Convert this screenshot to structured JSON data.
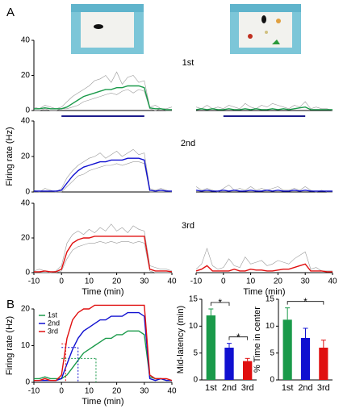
{
  "panel_labels": [
    "A",
    "B"
  ],
  "chart_data": [
    {
      "type": "line",
      "annotation": "1st",
      "xlim": [
        -10,
        40
      ],
      "ylim": [
        0,
        40
      ],
      "yticks": [
        0,
        20,
        40
      ],
      "stimulus": [
        0,
        30
      ],
      "stimulus_color": "#1c1c8c",
      "x": [
        -10,
        -8,
        -6,
        -4,
        -2,
        0,
        2,
        4,
        6,
        8,
        10,
        12,
        14,
        16,
        18,
        20,
        22,
        24,
        26,
        28,
        30,
        32,
        34,
        36,
        38,
        40
      ],
      "series": [
        {
          "color": "#999999",
          "values": [
            2,
            1,
            3,
            2,
            1,
            2,
            5,
            8,
            10,
            12,
            14,
            17,
            18,
            20,
            16,
            22,
            15,
            19,
            20,
            16,
            17,
            2,
            3,
            1,
            1,
            2
          ]
        },
        {
          "color": "#999999",
          "values": [
            0,
            0,
            1,
            0,
            0,
            1,
            1,
            2,
            3,
            5,
            6,
            7,
            8,
            9,
            10,
            9,
            11,
            12,
            10,
            12,
            11,
            1,
            0,
            1,
            0,
            0
          ]
        },
        {
          "color": "#1a9a4a",
          "values": [
            1,
            1,
            1.5,
            1,
            1,
            1,
            2,
            4,
            6,
            8,
            9,
            10,
            11,
            12,
            12,
            13,
            13,
            14,
            14,
            14,
            13,
            1.5,
            1,
            1,
            0.5,
            0.5
          ]
        }
      ]
    },
    {
      "type": "line",
      "xlim": [
        -10,
        40
      ],
      "ylim": [
        0,
        40
      ],
      "stimulus": [
        0,
        30
      ],
      "stimulus_color": "#1c1c8c",
      "x": [
        -10,
        -8,
        -6,
        -4,
        -2,
        0,
        2,
        4,
        6,
        8,
        10,
        12,
        14,
        16,
        18,
        20,
        22,
        24,
        26,
        28,
        30,
        32,
        34,
        36,
        38,
        40
      ],
      "series": [
        {
          "color": "#999999",
          "values": [
            2,
            1,
            3,
            1,
            2,
            1,
            3,
            2,
            1,
            4,
            2,
            1,
            3,
            2,
            4,
            3,
            2,
            1,
            3,
            2,
            5,
            1,
            2,
            1,
            1,
            0
          ]
        },
        {
          "color": "#1a9a4a",
          "values": [
            0.5,
            1,
            0.5,
            1,
            0.5,
            0.5,
            1,
            0.5,
            0.5,
            1,
            0.5,
            1,
            0.5,
            0.5,
            1,
            0.5,
            1,
            0.5,
            1,
            1.5,
            2,
            0.5,
            0.5,
            0.5,
            0.5,
            0.5
          ]
        }
      ]
    },
    {
      "type": "line",
      "annotation": "2nd",
      "ylabel": "Firing rate (Hz)",
      "xlim": [
        -10,
        40
      ],
      "ylim": [
        0,
        40
      ],
      "yticks": [
        0,
        20,
        40
      ],
      "x": [
        -10,
        -8,
        -6,
        -4,
        -2,
        0,
        2,
        4,
        6,
        8,
        10,
        12,
        14,
        16,
        18,
        20,
        22,
        24,
        26,
        28,
        30,
        32,
        34,
        36,
        38,
        40
      ],
      "series": [
        {
          "color": "#999999",
          "values": [
            1,
            0,
            2,
            1,
            0,
            2,
            8,
            12,
            15,
            17,
            19,
            20,
            22,
            19,
            21,
            23,
            20,
            22,
            24,
            21,
            22,
            2,
            1,
            2,
            1,
            0
          ]
        },
        {
          "color": "#999999",
          "values": [
            0,
            0,
            0,
            0,
            0,
            0,
            3,
            6,
            9,
            10,
            12,
            13,
            14,
            15,
            15,
            16,
            15,
            16,
            17,
            17,
            16,
            0,
            0,
            0,
            0,
            0
          ]
        },
        {
          "color": "#1010d0",
          "values": [
            0.5,
            0.5,
            0.5,
            0.5,
            0.5,
            1,
            5,
            9,
            12,
            14,
            15,
            16,
            17,
            17,
            18,
            18,
            18,
            19,
            19,
            19,
            18,
            1,
            0.5,
            1,
            0.5,
            0.5
          ]
        }
      ]
    },
    {
      "type": "line",
      "xlim": [
        -10,
        40
      ],
      "ylim": [
        0,
        40
      ],
      "x": [
        -10,
        -8,
        -6,
        -4,
        -2,
        0,
        2,
        4,
        6,
        8,
        10,
        12,
        14,
        16,
        18,
        20,
        22,
        24,
        26,
        28,
        30,
        32,
        34,
        36,
        38,
        40
      ],
      "series": [
        {
          "color": "#999999",
          "values": [
            3,
            1,
            2,
            1,
            0,
            2,
            4,
            1,
            2,
            1,
            3,
            1,
            2,
            1,
            2,
            3,
            1,
            1,
            2,
            1,
            3,
            1,
            0,
            1,
            0,
            0
          ]
        },
        {
          "color": "#1010d0",
          "values": [
            1,
            0.5,
            1,
            0.5,
            0.5,
            1,
            0.5,
            1,
            0.5,
            0.5,
            1,
            0.5,
            0.5,
            1,
            0.5,
            1,
            0.5,
            0.5,
            1,
            0.5,
            1,
            0.5,
            0.5,
            0.5,
            0.5,
            0.5
          ]
        }
      ]
    },
    {
      "type": "line",
      "annotation": "3rd",
      "xlabel": "Time (min)",
      "xlim": [
        -10,
        40
      ],
      "ylim": [
        0,
        40
      ],
      "yticks": [
        0,
        20,
        40
      ],
      "xticks": [
        -10,
        0,
        10,
        20,
        30,
        40
      ],
      "x": [
        -10,
        -8,
        -6,
        -4,
        -2,
        0,
        2,
        4,
        6,
        8,
        10,
        12,
        14,
        16,
        18,
        20,
        22,
        24,
        26,
        28,
        30,
        32,
        34,
        36,
        38,
        40
      ],
      "series": [
        {
          "color": "#999999",
          "values": [
            1,
            2,
            1,
            0,
            1,
            4,
            17,
            22,
            24,
            22,
            25,
            23,
            26,
            24,
            28,
            24,
            26,
            23,
            27,
            25,
            24,
            4,
            3,
            2,
            2,
            1
          ]
        },
        {
          "color": "#999999",
          "values": [
            0,
            0,
            0,
            0,
            0,
            1,
            8,
            13,
            15,
            16,
            17,
            17,
            18,
            17,
            18,
            17,
            18,
            18,
            17,
            18,
            17,
            1,
            0,
            0,
            0,
            0
          ]
        },
        {
          "color": "#e01010",
          "values": [
            0.5,
            0.5,
            1,
            0.5,
            0.5,
            2,
            12,
            17,
            19,
            20,
            20,
            21,
            21,
            21,
            21,
            21,
            21,
            21,
            21,
            21,
            21,
            2,
            1,
            1,
            1,
            0.5
          ]
        }
      ]
    },
    {
      "type": "line",
      "xlabel": "Time (min)",
      "xlim": [
        -10,
        40
      ],
      "ylim": [
        0,
        40
      ],
      "xticks": [
        -10,
        0,
        10,
        20,
        30,
        40
      ],
      "x": [
        -10,
        -8,
        -6,
        -4,
        -2,
        0,
        2,
        4,
        6,
        8,
        10,
        12,
        14,
        16,
        18,
        20,
        22,
        24,
        26,
        28,
        30,
        32,
        34,
        36,
        38,
        40
      ],
      "series": [
        {
          "color": "#999999",
          "values": [
            2,
            5,
            14,
            4,
            2,
            3,
            8,
            4,
            3,
            9,
            5,
            6,
            7,
            4,
            5,
            7,
            6,
            5,
            8,
            10,
            12,
            2,
            3,
            1,
            1,
            1
          ]
        },
        {
          "color": "#e01010",
          "values": [
            1,
            2,
            4,
            1,
            1,
            1,
            1,
            2,
            1,
            1,
            2,
            1.5,
            1.5,
            1,
            1,
            1.5,
            2,
            2,
            3,
            4,
            5,
            1,
            1,
            1,
            0.5,
            0.5
          ]
        }
      ]
    },
    {
      "type": "line",
      "ylabel": "Firing rate (Hz)",
      "xlabel": "Time (min)",
      "xlim": [
        -10,
        40
      ],
      "ylim": [
        0,
        20
      ],
      "yticks": [
        0,
        10,
        20
      ],
      "xticks": [
        -10,
        0,
        10,
        20,
        30,
        40
      ],
      "legend": "upper left",
      "x": [
        -10,
        -8,
        -6,
        -4,
        -2,
        0,
        2,
        4,
        6,
        8,
        10,
        12,
        14,
        16,
        18,
        20,
        22,
        24,
        26,
        28,
        30,
        32,
        34,
        36,
        38,
        40
      ],
      "series": [
        {
          "name": "1st",
          "color": "#1a9a4a",
          "half_x": 12.5,
          "half_y": 6.5,
          "values": [
            1,
            1,
            1.5,
            1,
            1,
            1,
            2,
            4,
            6,
            8,
            9,
            10,
            11,
            12,
            12,
            13,
            13,
            14,
            14,
            14,
            13,
            1.5,
            1,
            1,
            0.5,
            0.5
          ]
        },
        {
          "name": "2nd",
          "color": "#1010d0",
          "half_x": 6,
          "half_y": 9.5,
          "values": [
            0.5,
            0.5,
            0.5,
            0.5,
            0.5,
            1,
            5,
            9,
            12,
            14,
            15,
            16,
            17,
            17,
            18,
            18,
            18,
            19,
            19,
            19,
            18,
            1,
            0.5,
            1,
            0.5,
            0.5
          ]
        },
        {
          "name": "3rd",
          "color": "#e01010",
          "half_x": 1.5,
          "half_y": 10.5,
          "values": [
            0.5,
            0.5,
            1,
            0.5,
            0.5,
            2,
            12,
            17,
            19,
            20,
            20,
            21,
            21,
            21,
            21,
            21,
            21,
            21,
            21,
            21,
            21,
            2,
            1,
            1,
            1,
            0.5
          ]
        }
      ]
    },
    {
      "type": "bar",
      "ylabel": "Mid-latency (min)",
      "ylim": [
        0,
        15
      ],
      "yticks": [
        0,
        5,
        10,
        15
      ],
      "categories": [
        "1st",
        "2nd",
        "3rd"
      ],
      "colors": [
        "#1a9a4a",
        "#1010d0",
        "#e01010"
      ],
      "values": [
        12,
        6,
        3.5
      ],
      "errors": [
        1.2,
        0.8,
        0.5
      ],
      "significance": [
        {
          "from": 0,
          "to": 1,
          "label": "*"
        },
        {
          "from": 1,
          "to": 2,
          "label": "*"
        }
      ]
    },
    {
      "type": "bar",
      "ylabel": "% Time in center",
      "ylim": [
        0,
        15
      ],
      "yticks": [
        0,
        5,
        10,
        15
      ],
      "categories": [
        "1st",
        "2nd",
        "3rd"
      ],
      "colors": [
        "#1a9a4a",
        "#1010d0",
        "#e01010"
      ],
      "values": [
        11.2,
        7.8,
        6
      ],
      "errors": [
        2.2,
        1.8,
        1.4
      ],
      "significance": [
        {
          "from": 0,
          "to": 2,
          "label": "*"
        }
      ]
    }
  ]
}
